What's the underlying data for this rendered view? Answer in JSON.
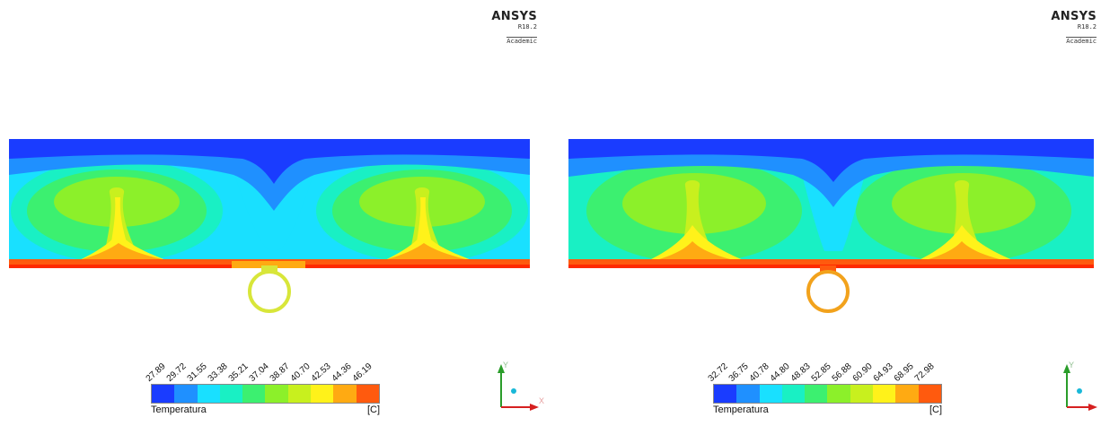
{
  "panels": [
    {
      "logo": {
        "brand": "ANSYS",
        "version": "R18.2",
        "license": "Academic"
      },
      "legend": {
        "variable": "Temperatura",
        "unit": "[C]",
        "levels": [
          "27.89",
          "29.72",
          "31.55",
          "33.38",
          "35.21",
          "37.04",
          "38.87",
          "40.70",
          "42.53",
          "44.36",
          "46.19"
        ]
      },
      "pipe_color": "#d8e63a"
    },
    {
      "logo": {
        "brand": "ANSYS",
        "version": "R18.2",
        "license": "Academic"
      },
      "legend": {
        "variable": "Temperatura",
        "unit": "[C]",
        "levels": [
          "32.72",
          "36.75",
          "40.78",
          "44.80",
          "48.83",
          "52.85",
          "56.88",
          "60.90",
          "64.93",
          "68.95",
          "72.98"
        ]
      },
      "pipe_color": "#f2a21c"
    }
  ],
  "axis_labels": {
    "y": "Y",
    "x": "X"
  },
  "colormap": [
    "#1a3cff",
    "#1f90ff",
    "#19e0ff",
    "#19f0c4",
    "#3cf070",
    "#8cf02a",
    "#c8f01e",
    "#fff21a",
    "#ffaa12",
    "#ff5a0e",
    "#ff2a00"
  ]
}
